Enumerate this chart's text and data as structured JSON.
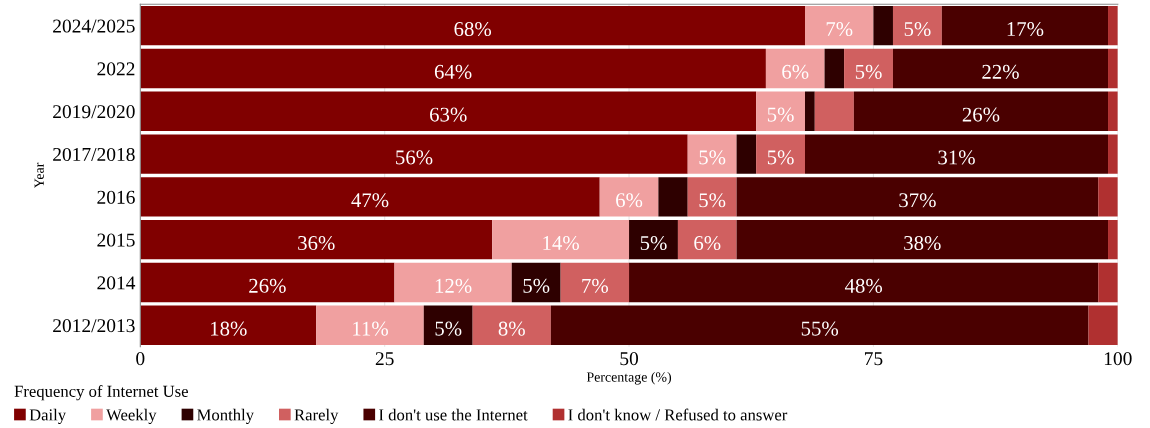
{
  "chart_data": {
    "type": "bar",
    "orientation": "horizontal",
    "stacked": true,
    "xlabel": "Percentage (%)",
    "ylabel": "Year",
    "legend_title": "Frequency of Internet Use",
    "legend": "bottom left",
    "grid": "x",
    "categories": [
      "2024/2025",
      "2022",
      "2019/2020",
      "2017/2018",
      "2016",
      "2015",
      "2014",
      "2012/2013"
    ],
    "xlim": [
      0,
      100
    ],
    "xticks": [
      0,
      25,
      50,
      75,
      100
    ],
    "series": [
      {
        "name": "Daily",
        "color": "#800000",
        "values": [
          68,
          64,
          63,
          56,
          47,
          36,
          26,
          18
        ],
        "value_labels": [
          "68%",
          "64%",
          "63%",
          "56%",
          "47%",
          "36%",
          "26%",
          "18%"
        ]
      },
      {
        "name": "Weekly",
        "color": "#f0a0a0",
        "values": [
          7,
          6,
          5,
          5,
          6,
          14,
          12,
          11
        ],
        "value_labels": [
          "7%",
          "6%",
          "5%",
          "5%",
          "6%",
          "14%",
          "12%",
          "11%"
        ]
      },
      {
        "name": "Monthly",
        "color": "#2e0000",
        "values": [
          2,
          2,
          1,
          2,
          3,
          5,
          5,
          5
        ],
        "value_labels": [
          null,
          null,
          null,
          null,
          null,
          "5%",
          "5%",
          "5%"
        ]
      },
      {
        "name": "Rarely",
        "color": "#d06060",
        "values": [
          5,
          5,
          4,
          5,
          5,
          6,
          7,
          8
        ],
        "value_labels": [
          "5%",
          "5%",
          null,
          "5%",
          "5%",
          "6%",
          "7%",
          "8%"
        ]
      },
      {
        "name": "I don't use the Internet",
        "color": "#4a0000",
        "values": [
          17,
          22,
          26,
          31,
          37,
          38,
          48,
          55
        ],
        "value_labels": [
          "17%",
          "22%",
          "26%",
          "31%",
          "37%",
          "38%",
          "48%",
          "55%"
        ]
      },
      {
        "name": "I don't know / Refused to answer",
        "color": "#b03030",
        "values": [
          1,
          1,
          1,
          1,
          2,
          1,
          2,
          3
        ],
        "value_labels": [
          null,
          null,
          null,
          null,
          null,
          null,
          null,
          null
        ]
      }
    ]
  }
}
